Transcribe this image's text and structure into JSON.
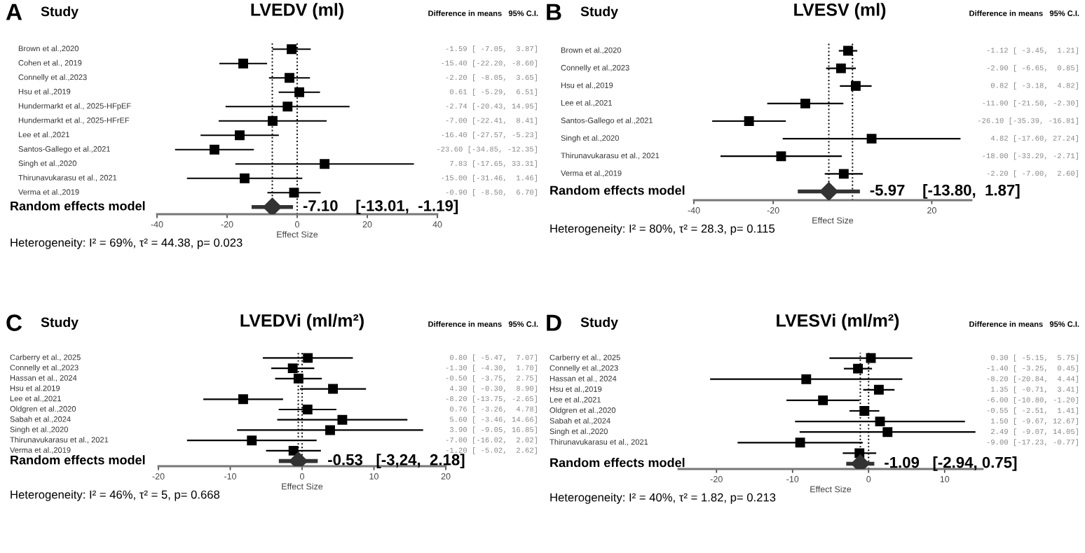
{
  "chart_data": [
    {
      "type": "scatter",
      "orientation": "horizontal",
      "title": "LVEDV (ml)",
      "xlabel": "Effect Size",
      "categories": [
        "Brown et al.,2020",
        "Cohen et al., 2019",
        "Connelly et al.,2023",
        "Hsu et al.,2019",
        "Hundermarkt et al., 2025-HFpEF",
        "Hundermarkt et al., 2025-HFrEF",
        "Lee et al.,2021",
        "Santos-Gallego et al.,2021",
        "Singh et al.,2020",
        "Thirunavukarasu et al., 2021",
        "Verma et al.,2019",
        null
      ],
      "series": [
        {
          "marker": "square",
          "color": "#000000",
          "values": [
            -1.59,
            -15.4,
            -2.2,
            0.61,
            -2.74,
            -7.0,
            -16.4,
            -23.6,
            7.83,
            -15.0,
            -0.9,
            null
          ],
          "errors": [
            [
              -7.05,
              3.87
            ],
            [
              -22.2,
              -8.6
            ],
            [
              -8.05,
              3.65
            ],
            [
              -5.29,
              6.51
            ],
            [
              -20.43,
              14.95
            ],
            [
              -22.41,
              8.41
            ],
            [
              -27.57,
              -5.23
            ],
            [
              -34.85,
              -12.35
            ],
            [
              -17.65,
              33.31
            ],
            [
              -31.46,
              1.46
            ],
            [
              -8.5,
              6.7
            ],
            null
          ],
          "value_labels": [
            "-1.59 [ -7.05,  3.87]",
            "-15.40 [-22.20, -8.60]",
            "-2.20 [ -8.05,  3.65]",
            "0.61 [ -5.29,  6.51]",
            "-2.74 [-20.43, 14.95]",
            "-7.00 [-22.41,  8.41]",
            "-16.40 [-27.57, -5.23]",
            "-23.60 [-34.85, -12.35]",
            "7.83 [-17.65, 33.31]",
            "-15.00 [-31.46,  1.46]",
            "-0.90 [ -8.50,  6.70]",
            null
          ]
        },
        {
          "marker": "diamond",
          "color": "#333333",
          "values": [
            null,
            null,
            null,
            null,
            null,
            null,
            null,
            null,
            null,
            null,
            null,
            -7.1
          ],
          "errors": [
            null,
            null,
            null,
            null,
            null,
            null,
            null,
            null,
            null,
            null,
            null,
            [
              -13.01,
              -1.19
            ]
          ],
          "value_labels": [
            null,
            null,
            null,
            null,
            null,
            null,
            null,
            null,
            null,
            null,
            null,
            "-7.10    [-13.01,  -1.19]"
          ]
        }
      ],
      "xlim": [
        -40,
        40
      ],
      "xticks": [
        -40,
        -20,
        0,
        20,
        40
      ],
      "ref_lines": [
        {
          "axis": "x",
          "value": 0,
          "line_style": "dotted"
        },
        {
          "axis": "x",
          "value": -7.1,
          "line_style": "dotted"
        }
      ],
      "annotations": [
        "A",
        "Study",
        "Difference in means   95% C.I.",
        "Random effects model",
        "Heterogeneity: I² = 69%, τ² = 44.38, p= 0.023"
      ],
      "grid": false,
      "legend": false
    },
    {
      "type": "scatter",
      "orientation": "horizontal",
      "title": "LVESV (ml)",
      "xlabel": "Effect Size",
      "categories": [
        "Brown et al.,2020",
        "Connelly et al.,2023",
        "Hsu et al.,2019",
        "Lee et al.,2021",
        "Santos-Gallego et al.,2021",
        "Singh et al.,2020",
        "Thirunavukarasu et al., 2021",
        "Verma et al.,2019",
        null
      ],
      "series": [
        {
          "marker": "square",
          "color": "#000000",
          "values": [
            -1.12,
            -2.9,
            0.82,
            -11.9,
            -26.1,
            4.82,
            -18.0,
            -2.2,
            null
          ],
          "errors": [
            [
              -3.45,
              1.21
            ],
            [
              -6.65,
              0.85
            ],
            [
              -3.18,
              4.82
            ],
            [
              -21.5,
              -2.3
            ],
            [
              -35.39,
              -16.81
            ],
            [
              -17.6,
              27.24
            ],
            [
              -33.29,
              -2.71
            ],
            [
              -7.0,
              2.6
            ],
            null
          ],
          "value_labels": [
            "-1.12 [ -3.45,  1.21]",
            "-2.90 [ -6.65,  0.85]",
            "0.82 [ -3.18,  4.82]",
            "-11.90 [-21.50, -2.30]",
            "-26.10 [-35.39, -16.81]",
            "4.82 [-17.60, 27.24]",
            "-18.00 [-33.29, -2.71]",
            "-2.20 [ -7.00,  2.60]",
            null
          ]
        },
        {
          "marker": "diamond",
          "color": "#333333",
          "values": [
            null,
            null,
            null,
            null,
            null,
            null,
            null,
            null,
            -5.97
          ],
          "errors": [
            null,
            null,
            null,
            null,
            null,
            null,
            null,
            null,
            [
              -13.8,
              1.87
            ]
          ],
          "value_labels": [
            null,
            null,
            null,
            null,
            null,
            null,
            null,
            null,
            "-5.97    [-13.80,  1.87]"
          ]
        }
      ],
      "xlim": [
        -40,
        30
      ],
      "xticks": [
        -40,
        -20,
        20
      ],
      "ref_lines": [
        {
          "axis": "x",
          "value": 0,
          "line_style": "dotted"
        },
        {
          "axis": "x",
          "value": -5.97,
          "line_style": "dotted"
        }
      ],
      "annotations": [
        "B",
        "Study",
        "Difference in means   95% C.I.",
        "Random effects model",
        "Heterogeneity: I² = 80%, τ² = 28.3, p= 0.115"
      ],
      "grid": false,
      "legend": false
    },
    {
      "type": "scatter",
      "orientation": "horizontal",
      "title": "LVEDVi (ml/m²)",
      "xlabel": "Effect Size",
      "categories": [
        "Carberry et al., 2025",
        "Connelly et al.,2023",
        "Hassan et al., 2024",
        "Hsu et al.2019",
        "Lee et al.,2021",
        "Oldgren et al.,2020",
        "Sabah et al.,2024",
        "Singh et al.,2020",
        "Thirunavukarasu et al., 2021",
        "Verma et al.,2019",
        null
      ],
      "series": [
        {
          "marker": "square",
          "color": "#000000",
          "values": [
            0.8,
            -1.3,
            -0.5,
            4.3,
            -8.2,
            0.76,
            5.6,
            3.9,
            -7.0,
            -1.2,
            null
          ],
          "errors": [
            [
              -5.47,
              7.07
            ],
            [
              -4.3,
              1.7
            ],
            [
              -3.75,
              2.75
            ],
            [
              -0.3,
              8.9
            ],
            [
              -13.75,
              -2.65
            ],
            [
              -3.26,
              4.78
            ],
            [
              -3.46,
              14.66
            ],
            [
              -9.05,
              16.85
            ],
            [
              -16.02,
              2.02
            ],
            [
              -5.02,
              2.62
            ],
            null
          ],
          "value_labels": [
            "0.80 [ -5.47,  7.07]",
            "-1.30 [ -4.30,  1.70]",
            "-0.50 [ -3.75,  2.75]",
            "4.30 [ -0.30,  8.90]",
            "-8.20 [-13.75, -2.65]",
            "0.76 [ -3.26,  4.78]",
            "5.60 [ -3.46, 14.66]",
            "3.90 [ -9.05, 16.85]",
            "-7.00 [-16.02,  2.02]",
            "-1.20 [ -5.02,  2.62]",
            null
          ]
        },
        {
          "marker": "diamond",
          "color": "#333333",
          "values": [
            null,
            null,
            null,
            null,
            null,
            null,
            null,
            null,
            null,
            null,
            -0.53
          ],
          "errors": [
            null,
            null,
            null,
            null,
            null,
            null,
            null,
            null,
            null,
            null,
            [
              -3.24,
              2.18
            ]
          ],
          "value_labels": [
            null,
            null,
            null,
            null,
            null,
            null,
            null,
            null,
            null,
            null,
            "-0.53   [-3,24,  2.18]"
          ]
        }
      ],
      "xlim": [
        -20,
        20
      ],
      "xticks": [
        -20,
        -10,
        0,
        10,
        20
      ],
      "ref_lines": [
        {
          "axis": "x",
          "value": 0,
          "line_style": "dotted"
        },
        {
          "axis": "x",
          "value": -0.53,
          "line_style": "dotted"
        }
      ],
      "annotations": [
        "C",
        "Study",
        "Difference in means   95% C.I.",
        "Random effects model",
        "Heterogeneity: I² = 46%, τ² = 5, p= 0.668"
      ],
      "grid": false,
      "legend": false
    },
    {
      "type": "scatter",
      "orientation": "horizontal",
      "title": "LVESVi (ml/m²)",
      "xlabel": "Effect Size",
      "categories": [
        "Carberry et al., 2025",
        "Connelly et al.,2023",
        "Hassan et al., 2024",
        "Hsu et al.,2019",
        "Lee et al.,2021",
        "Oldgren et al.,2020",
        "Sabah et al.,2024",
        "Singh et al.,2020",
        "Thirunavukarasu et al., 2021",
        null,
        null
      ],
      "series": [
        {
          "marker": "square",
          "color": "#000000",
          "values": [
            0.3,
            -1.4,
            -8.2,
            1.35,
            -6.0,
            -0.55,
            1.5,
            2.49,
            -9.0,
            -1.2,
            null
          ],
          "errors": [
            [
              -5.15,
              5.75
            ],
            [
              -3.25,
              0.45
            ],
            [
              -20.84,
              4.44
            ],
            [
              -0.71,
              3.41
            ],
            [
              -10.8,
              -1.2
            ],
            [
              -2.51,
              1.41
            ],
            [
              -9.67,
              12.67
            ],
            [
              -9.07,
              14.05
            ],
            [
              -17.23,
              -0.77
            ],
            [
              -3.4,
              1.0
            ],
            null
          ],
          "value_labels": [
            "0.30 [ -5.15,  5.75]",
            "-1.40 [ -3.25,  0.45]",
            "-8.20 [-20.84,  4.44]",
            "1.35 [ -0.71,  3.41]",
            "-6.00 [-10.80, -1.20]",
            "-0.55 [ -2.51,  1.41]",
            "1.50 [ -9.67, 12.67]",
            "2.49 [ -9.07, 14.05]",
            "-9.00 [-17.23, -0.77]",
            null,
            null
          ]
        },
        {
          "marker": "diamond",
          "color": "#333333",
          "values": [
            null,
            null,
            null,
            null,
            null,
            null,
            null,
            null,
            null,
            null,
            -1.09
          ],
          "errors": [
            null,
            null,
            null,
            null,
            null,
            null,
            null,
            null,
            null,
            null,
            [
              -2.94,
              0.75
            ]
          ],
          "value_labels": [
            null,
            null,
            null,
            null,
            null,
            null,
            null,
            null,
            null,
            null,
            "-1.09   [-2.94, 0.75]"
          ]
        }
      ],
      "xlim": [
        -25,
        15
      ],
      "xticks": [
        -20,
        -10,
        0,
        10
      ],
      "ref_lines": [
        {
          "axis": "x",
          "value": 0,
          "line_style": "dotted"
        },
        {
          "axis": "x",
          "value": -1.09,
          "line_style": "dotted"
        }
      ],
      "annotations": [
        "D",
        "Study",
        "Difference in means   95% C.I.",
        "Random effects model",
        "Heterogeneity: I² = 40%, τ² = 1.82, p= 0.213"
      ],
      "grid": false,
      "legend": false
    }
  ]
}
